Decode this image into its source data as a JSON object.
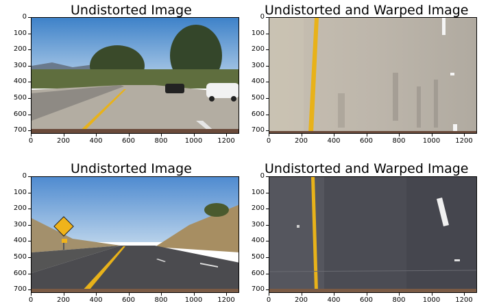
{
  "panels": [
    {
      "title": "Undistorted Image",
      "scene": "road-undistorted-1"
    },
    {
      "title": "Undistorted and Warped Image",
      "scene": "road-warped-1"
    },
    {
      "title": "Undistorted Image",
      "scene": "road-undistorted-2"
    },
    {
      "title": "Undistorted and Warped Image",
      "scene": "road-warped-2"
    }
  ],
  "x_ticks": [
    "0",
    "200",
    "400",
    "600",
    "800",
    "1000",
    "1200"
  ],
  "y_ticks": [
    "0",
    "100",
    "200",
    "300",
    "400",
    "500",
    "600",
    "700"
  ],
  "colors": {
    "lane_yellow": "#e8b21a",
    "sky_blue": "#5a93cf",
    "asphalt_light": "#b8b3aa",
    "asphalt_dark": "#4a4a52"
  }
}
